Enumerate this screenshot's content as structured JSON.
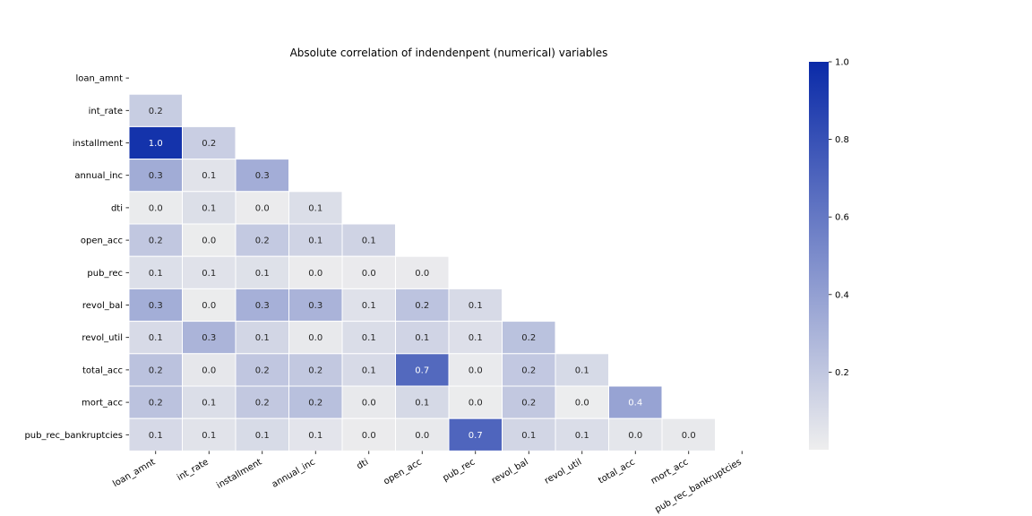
{
  "chart_data": {
    "type": "heatmap",
    "title": "Absolute correlation of indendenpent (numerical) variables",
    "row_labels": [
      "loan_amnt",
      "int_rate",
      "installment",
      "annual_inc",
      "dti",
      "open_acc",
      "pub_rec",
      "revol_bal",
      "revol_util",
      "total_acc",
      "mort_acc",
      "pub_rec_bankruptcies"
    ],
    "col_labels": [
      "loan_amnt",
      "int_rate",
      "installment",
      "annual_inc",
      "dti",
      "open_acc",
      "pub_rec",
      "revol_bal",
      "revol_util",
      "total_acc",
      "mort_acc",
      "pub_rec_bankruptcies"
    ],
    "mask": "upper triangle including diagonal",
    "values": [
      [],
      [
        0.169
      ],
      [
        0.954,
        0.162
      ],
      [
        0.337,
        0.057,
        0.33
      ],
      [
        0.017,
        0.079,
        0.015,
        0.082
      ],
      [
        0.199,
        0.012,
        0.189,
        0.137,
        0.136
      ],
      [
        0.078,
        0.061,
        0.068,
        0.014,
        0.018,
        0.018
      ],
      [
        0.329,
        0.011,
        0.317,
        0.299,
        0.064,
        0.221,
        0.102
      ],
      [
        0.1,
        0.294,
        0.124,
        0.028,
        0.088,
        0.132,
        0.076,
        0.226
      ],
      [
        0.223,
        0.036,
        0.202,
        0.193,
        0.102,
        0.681,
        0.02,
        0.192,
        0.104
      ],
      [
        0.222,
        0.083,
        0.194,
        0.236,
        0.025,
        0.109,
        0.012,
        0.195,
        0.007,
        0.381
      ],
      [
        0.107,
        0.057,
        0.099,
        0.05,
        0.015,
        0.027,
        0.699,
        0.124,
        0.087,
        0.042,
        0.027
      ]
    ],
    "value_format": "one decimal place",
    "colorbar": {
      "range": [
        0.0,
        1.0
      ],
      "ticks": [
        "0.2",
        "0.4",
        "0.6",
        "0.8",
        "1.0"
      ],
      "low_color": "#eeeeee",
      "high_color": "#0a2aa8"
    },
    "grid_lines": "white"
  }
}
